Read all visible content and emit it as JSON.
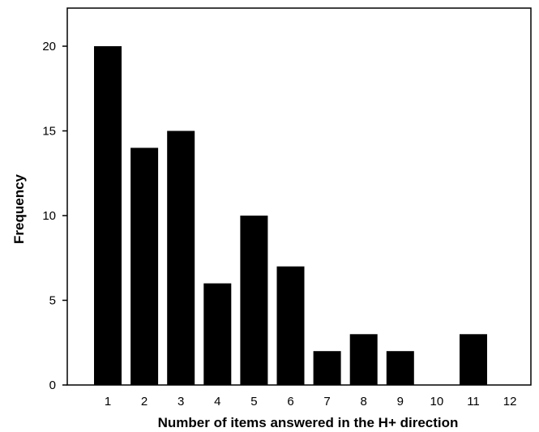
{
  "chart_data": {
    "type": "bar",
    "title": "",
    "xlabel": "Number of items answered in the H+ direction",
    "ylabel": "Frequency",
    "categories": [
      "1",
      "2",
      "3",
      "4",
      "5",
      "6",
      "7",
      "8",
      "9",
      "10",
      "11",
      "12"
    ],
    "values": [
      20,
      14,
      15,
      6,
      10,
      7,
      2,
      3,
      2,
      0,
      3,
      0
    ],
    "ylim": [
      0,
      22
    ],
    "yticks": [
      0,
      5,
      10,
      15,
      20
    ],
    "grid": false,
    "legend": "none",
    "bar_color": "#000000"
  }
}
